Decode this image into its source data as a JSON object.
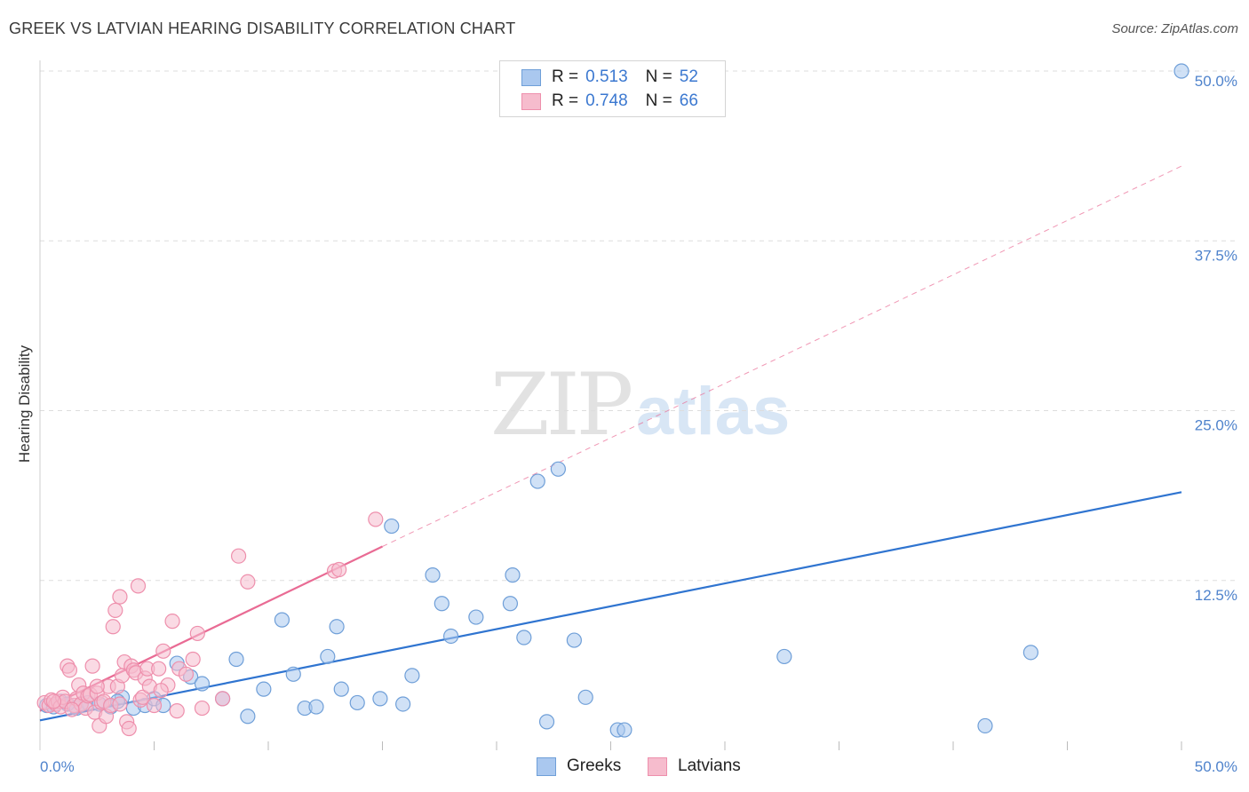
{
  "title": "GREEK VS LATVIAN HEARING DISABILITY CORRELATION CHART",
  "source": "Source: ZipAtlas.com",
  "watermark": {
    "zip": "ZIP",
    "atlas": "atlas"
  },
  "legend": {
    "r_label": "R =",
    "n_label": "N =",
    "greeks": {
      "r": "0.513",
      "n": "52"
    },
    "latvians": {
      "r": "0.748",
      "n": "66"
    }
  },
  "bottom_legend": {
    "greeks": "Greeks",
    "latvians": "Latvians"
  },
  "colors": {
    "greek_fill": "#aac8ef",
    "greek_stroke": "#6f9fd8",
    "greek_line": "#2f74d0",
    "latvian_fill": "#f6bccd",
    "latvian_stroke": "#ee8fac",
    "latvian_line": "#e96b94",
    "tick": "#4f83cc"
  },
  "chart_data": {
    "type": "scatter",
    "title": "GREEK VS LATVIAN HEARING DISABILITY CORRELATION CHART",
    "xlabel": "",
    "ylabel": "Hearing Disability",
    "xlim": [
      0,
      50
    ],
    "ylim": [
      0,
      50
    ],
    "x_tick_labels": [
      "0.0%",
      "50.0%"
    ],
    "y_ticks": [
      12.5,
      25.0,
      37.5,
      50.0
    ],
    "y_tick_labels": [
      "12.5%",
      "25.0%",
      "37.5%",
      "50.0%"
    ],
    "grid": true,
    "series": [
      {
        "name": "Greeks",
        "r": 0.513,
        "n": 52,
        "trend": {
          "x0": 0,
          "y0": 2.2,
          "x1": 50,
          "y1": 19.0
        },
        "points": [
          [
            0.3,
            3.3
          ],
          [
            0.6,
            3.2
          ],
          [
            0.9,
            3.6
          ],
          [
            1.2,
            3.4
          ],
          [
            1.6,
            3.1
          ],
          [
            2.1,
            3.5
          ],
          [
            2.6,
            3.4
          ],
          [
            3.1,
            3.2
          ],
          [
            3.6,
            3.9
          ],
          [
            4.1,
            3.1
          ],
          [
            4.6,
            3.3
          ],
          [
            5.0,
            3.8
          ],
          [
            5.4,
            3.3
          ],
          [
            6.0,
            6.4
          ],
          [
            6.6,
            5.4
          ],
          [
            7.1,
            4.9
          ],
          [
            8.0,
            3.8
          ],
          [
            8.6,
            6.7
          ],
          [
            9.8,
            4.5
          ],
          [
            10.6,
            9.6
          ],
          [
            11.1,
            5.6
          ],
          [
            11.6,
            3.1
          ],
          [
            12.1,
            3.2
          ],
          [
            12.6,
            6.9
          ],
          [
            13.0,
            9.1
          ],
          [
            13.2,
            4.5
          ],
          [
            13.9,
            3.5
          ],
          [
            14.9,
            3.8
          ],
          [
            15.4,
            16.5
          ],
          [
            15.9,
            3.4
          ],
          [
            16.3,
            5.5
          ],
          [
            17.2,
            12.9
          ],
          [
            17.6,
            10.8
          ],
          [
            18.0,
            8.4
          ],
          [
            19.1,
            9.8
          ],
          [
            20.6,
            10.8
          ],
          [
            20.7,
            12.9
          ],
          [
            21.2,
            8.3
          ],
          [
            21.8,
            19.8
          ],
          [
            22.2,
            2.1
          ],
          [
            22.7,
            20.7
          ],
          [
            23.4,
            8.1
          ],
          [
            23.9,
            3.9
          ],
          [
            25.3,
            1.5
          ],
          [
            25.6,
            1.5
          ],
          [
            32.6,
            6.9
          ],
          [
            41.4,
            1.8
          ],
          [
            43.4,
            7.2
          ],
          [
            50.0,
            50.0
          ],
          [
            3.4,
            3.6
          ],
          [
            1.8,
            3.4
          ],
          [
            9.1,
            2.5
          ]
        ]
      },
      {
        "name": "Latvians",
        "r": 0.748,
        "n": 66,
        "trend": {
          "x0": 0,
          "y0": 2.9,
          "x1": 15,
          "y1": 15.0
        },
        "trend_extension": {
          "x0": 15,
          "y0": 15.0,
          "x1": 50,
          "y1": 43.0
        },
        "points": [
          [
            0.2,
            3.5
          ],
          [
            0.4,
            3.3
          ],
          [
            0.5,
            3.7
          ],
          [
            0.7,
            3.4
          ],
          [
            0.8,
            3.6
          ],
          [
            0.9,
            3.2
          ],
          [
            1.0,
            3.9
          ],
          [
            1.1,
            3.6
          ],
          [
            1.2,
            6.2
          ],
          [
            1.3,
            5.9
          ],
          [
            1.5,
            3.3
          ],
          [
            1.6,
            3.8
          ],
          [
            1.7,
            4.8
          ],
          [
            1.8,
            3.4
          ],
          [
            1.9,
            4.2
          ],
          [
            2.0,
            3.1
          ],
          [
            2.1,
            4.0
          ],
          [
            2.2,
            4.1
          ],
          [
            2.3,
            6.2
          ],
          [
            2.4,
            2.8
          ],
          [
            2.5,
            4.2
          ],
          [
            2.6,
            1.8
          ],
          [
            2.7,
            3.5
          ],
          [
            2.8,
            3.6
          ],
          [
            2.9,
            2.5
          ],
          [
            3.0,
            4.7
          ],
          [
            3.1,
            3.3
          ],
          [
            3.2,
            9.1
          ],
          [
            3.3,
            10.3
          ],
          [
            3.4,
            4.7
          ],
          [
            3.5,
            11.3
          ],
          [
            3.6,
            5.5
          ],
          [
            3.7,
            6.5
          ],
          [
            3.8,
            2.1
          ],
          [
            3.9,
            1.6
          ],
          [
            4.0,
            6.2
          ],
          [
            4.1,
            5.9
          ],
          [
            4.2,
            5.7
          ],
          [
            4.3,
            12.1
          ],
          [
            4.4,
            3.7
          ],
          [
            4.5,
            3.9
          ],
          [
            4.6,
            5.3
          ],
          [
            4.7,
            6.0
          ],
          [
            4.8,
            4.7
          ],
          [
            5.0,
            3.3
          ],
          [
            5.2,
            6.0
          ],
          [
            5.4,
            7.3
          ],
          [
            5.6,
            4.8
          ],
          [
            5.8,
            9.5
          ],
          [
            6.0,
            2.9
          ],
          [
            6.1,
            6.0
          ],
          [
            6.4,
            5.6
          ],
          [
            6.7,
            6.7
          ],
          [
            6.9,
            8.6
          ],
          [
            7.1,
            3.1
          ],
          [
            8.0,
            3.8
          ],
          [
            8.7,
            14.3
          ],
          [
            9.1,
            12.4
          ],
          [
            12.9,
            13.2
          ],
          [
            13.1,
            13.3
          ],
          [
            14.7,
            17.0
          ],
          [
            3.5,
            3.4
          ],
          [
            5.3,
            4.4
          ],
          [
            1.4,
            3.0
          ],
          [
            2.5,
            4.7
          ],
          [
            0.6,
            3.6
          ]
        ]
      }
    ]
  }
}
